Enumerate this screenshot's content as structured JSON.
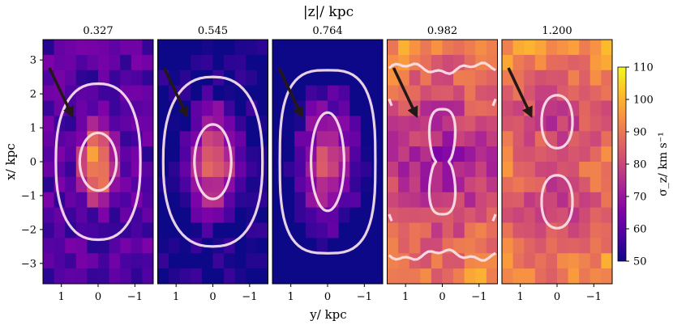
{
  "chart_data": {
    "type": "heatmap",
    "title": "|z|/ kpc",
    "xlabel": "y/ kpc",
    "ylabel": "x/ kpc",
    "xlim": [
      1.5,
      -1.5
    ],
    "ylim": [
      -3.6,
      3.6
    ],
    "x_ticks": [
      "1",
      "0",
      "−1"
    ],
    "x_tick_values": [
      1,
      0,
      -1
    ],
    "y_ticks": [
      "3",
      "2",
      "1",
      "0",
      "−1",
      "−2",
      "−3"
    ],
    "y_tick_values": [
      3,
      2,
      1,
      0,
      -1,
      -2,
      -3
    ],
    "colorbar": {
      "label": "σ_z/ km s⁻¹",
      "min": 50,
      "max": 110,
      "ticks": [
        "50",
        "60",
        "70",
        "80",
        "90",
        "100",
        "110"
      ],
      "tick_values": [
        50,
        60,
        70,
        80,
        90,
        100,
        110
      ]
    },
    "panels": [
      {
        "label": "0.327",
        "center": 104,
        "scale": 1.3,
        "contours": [
          {
            "level": 85,
            "a": 0.5,
            "b": 0.85
          },
          {
            "level": 70,
            "a": 1.15,
            "b": 2.3
          }
        ],
        "arrow": true
      },
      {
        "label": "0.545",
        "center": 95,
        "scale": 1.75,
        "contours": [
          {
            "level": 85,
            "a": 0.5,
            "b": 1.1
          },
          {
            "level": 70,
            "a": 1.35,
            "b": 2.5
          }
        ],
        "arrow": true
      },
      {
        "label": "0.764",
        "center": 88,
        "scale": 2.3,
        "contours": [
          {
            "level": 85,
            "a": 0.45,
            "b": 1.45
          },
          {
            "level": 70,
            "a": 1.3,
            "b": 2.7
          }
        ],
        "arrow": true
      },
      {
        "label": "0.982",
        "center": 73,
        "scale": 2.6,
        "contours": [
          {
            "level": 75,
            "a": 0.45,
            "b": 1.6
          },
          {
            "level": 100,
            "a": 1.25,
            "b": 3.0
          }
        ],
        "arrow": true
      },
      {
        "label": "1.200",
        "center": 77,
        "scale": 3.0,
        "contours": [
          {
            "level": 80,
            "a": 0.42,
            "b": 0.95
          },
          {
            "level": 80,
            "a": 0.42,
            "b": 0.95
          }
        ],
        "arrow": true
      }
    ]
  }
}
